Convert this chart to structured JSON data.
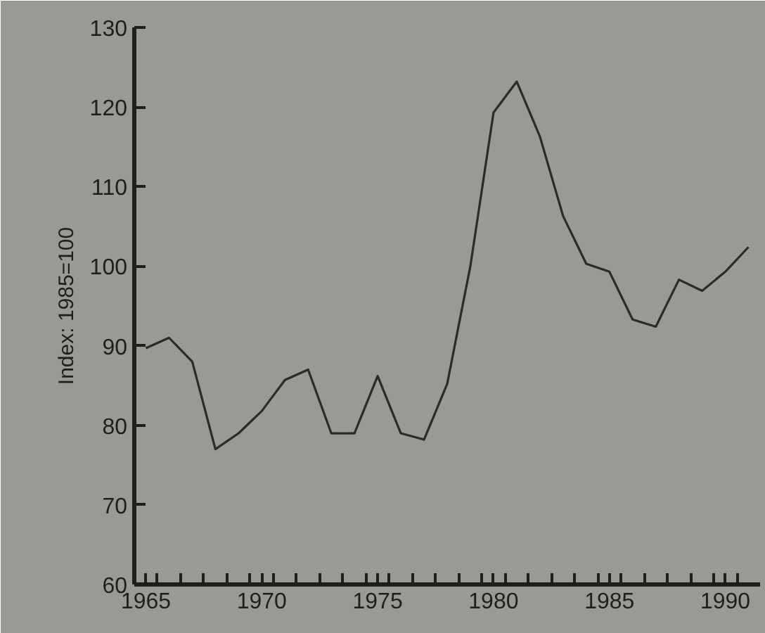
{
  "chart_data": {
    "type": "line",
    "ylabel": "Index: 1985=100",
    "x": [
      1965,
      1966,
      1967,
      1968,
      1969,
      1970,
      1971,
      1972,
      1973,
      1974,
      1975,
      1976,
      1977,
      1978,
      1979,
      1980,
      1981,
      1982,
      1983,
      1984,
      1985,
      1986,
      1987,
      1988,
      1989,
      1990,
      1991
    ],
    "series": [
      {
        "color": "#2b2b2b",
        "values": [
          89.7,
          91.0,
          88.0,
          77.0,
          79.0,
          81.8,
          85.7,
          87.0,
          79.0,
          79.0,
          86.2,
          79.0,
          78.2,
          85.2,
          100.0,
          119.3,
          123.2,
          116.3,
          106.3,
          100.3,
          99.3,
          93.3,
          92.4,
          98.3,
          96.9,
          99.3,
          102.4
        ]
      }
    ],
    "xlim": [
      1964.5,
      1991.5
    ],
    "xticks": [
      1965,
      {
        "value": 1965.5,
        "label": null
      },
      {
        "value": 1966.5,
        "label": null
      },
      {
        "value": 1967.5,
        "label": null
      },
      {
        "value": 1968.5,
        "label": null
      },
      {
        "value": 1969.5,
        "label": null
      },
      1970,
      {
        "value": 1970.5,
        "label": null
      },
      {
        "value": 1971.5,
        "label": null
      },
      {
        "value": 1972.5,
        "label": null
      },
      {
        "value": 1973.5,
        "label": null
      },
      {
        "value": 1974.5,
        "label": null
      },
      1975,
      {
        "value": 1975.5,
        "label": null
      },
      {
        "value": 1976.5,
        "label": null
      },
      {
        "value": 1977.5,
        "label": null
      },
      {
        "value": 1978.5,
        "label": null
      },
      {
        "value": 1979.5,
        "label": null
      },
      1980,
      {
        "value": 1980.5,
        "label": null
      },
      {
        "value": 1981.5,
        "label": null
      },
      {
        "value": 1982.5,
        "label": null
      },
      {
        "value": 1983.5,
        "label": null
      },
      {
        "value": 1984.5,
        "label": null
      },
      1985,
      {
        "value": 1985.5,
        "label": null
      },
      {
        "value": 1986.5,
        "label": null
      },
      {
        "value": 1987.5,
        "label": null
      },
      {
        "value": 1988.5,
        "label": null
      },
      {
        "value": 1989.5,
        "label": null
      },
      1990,
      {
        "value": 1990.5,
        "label": null
      }
    ],
    "ylim": [
      60,
      130
    ],
    "yticks": [
      60,
      70,
      80,
      90,
      100,
      110,
      120,
      130
    ],
    "marker": "none",
    "line_style": "solid"
  }
}
